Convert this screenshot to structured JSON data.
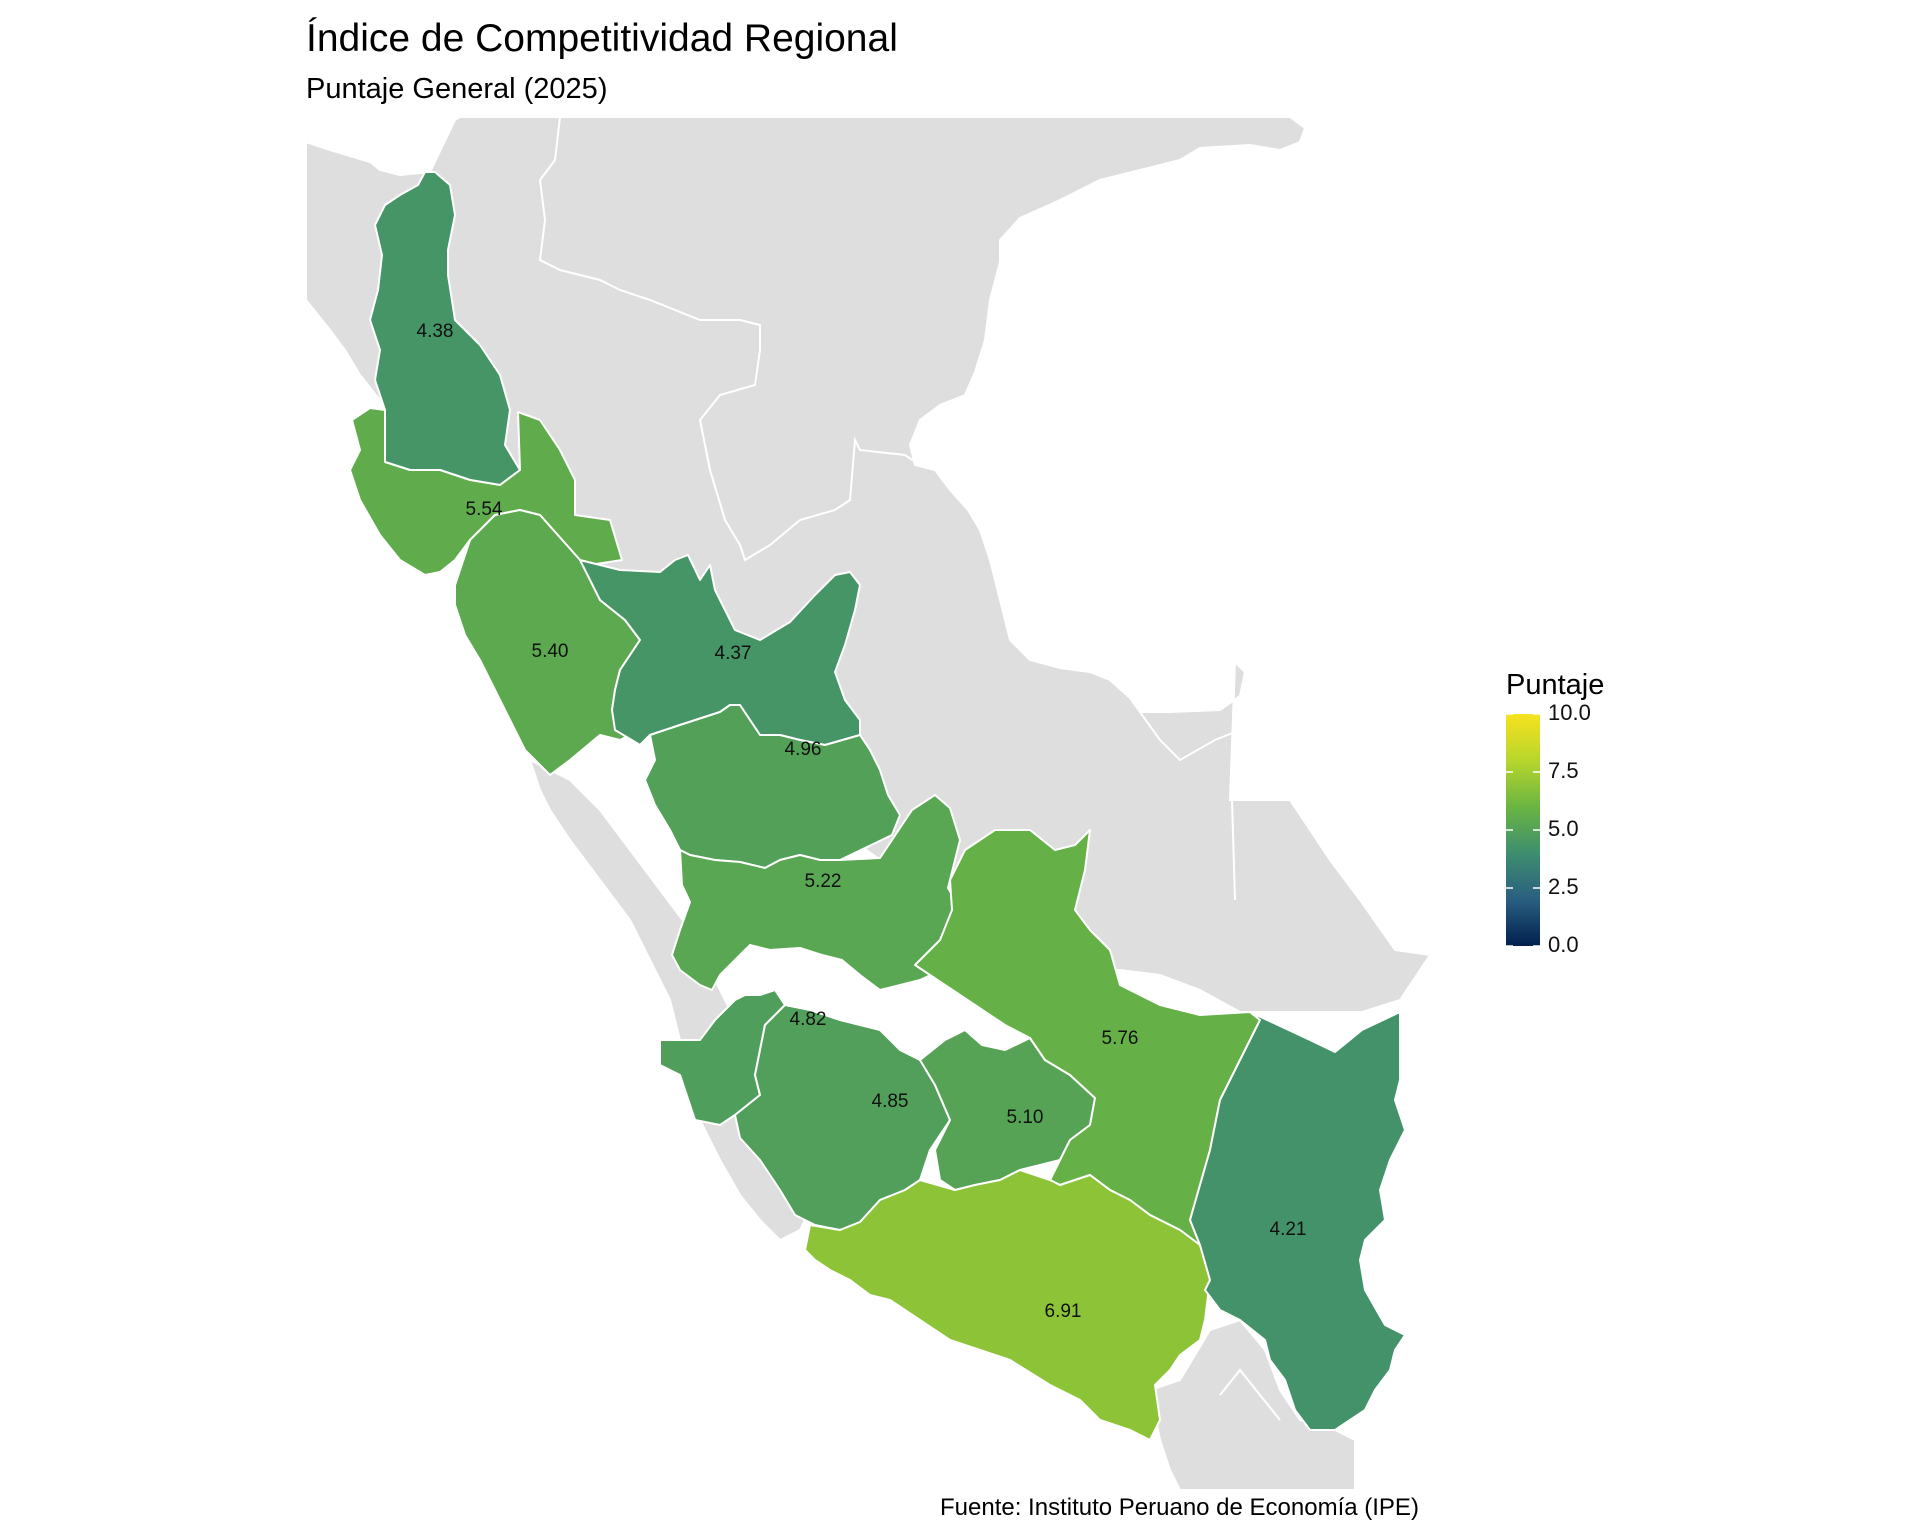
{
  "title": "Índice de Competitividad Regional",
  "subtitle": "Puntaje General (2025)",
  "caption": "Fuente: Instituto Peruano de Economía (IPE)",
  "legend": {
    "title": "Puntaje",
    "min": 0,
    "max": 10,
    "ticks": [
      {
        "value": 0,
        "label": "0.0"
      },
      {
        "value": 2.5,
        "label": "2.5"
      },
      {
        "value": 5,
        "label": "5.0"
      },
      {
        "value": 7.5,
        "label": "7.5"
      },
      {
        "value": 10,
        "label": "10.0"
      }
    ],
    "palette": [
      "#00204d",
      "#2a5f80",
      "#3e8e6f",
      "#6ab541",
      "#b8d62c",
      "#f7e21e"
    ]
  },
  "regions": [
    {
      "id": "cajamarca",
      "value": 4.38,
      "label": "4.38"
    },
    {
      "id": "lambayeque-la-libertad",
      "value": 5.54,
      "label": "5.54"
    },
    {
      "id": "ancash",
      "value": 5.4,
      "label": "5.40"
    },
    {
      "id": "huanuco",
      "value": 4.37,
      "label": "4.37"
    },
    {
      "id": "pasco-junin-north",
      "value": 4.96,
      "label": "4.96"
    },
    {
      "id": "junin",
      "value": 5.22,
      "label": "5.22"
    },
    {
      "id": "huancavelica",
      "value": 4.82,
      "label": "4.82"
    },
    {
      "id": "ayacucho",
      "value": 4.85,
      "label": "4.85"
    },
    {
      "id": "apurimac",
      "value": 5.1,
      "label": "5.10"
    },
    {
      "id": "cusco",
      "value": 5.76,
      "label": "5.76"
    },
    {
      "id": "arequipa",
      "value": 6.91,
      "label": "6.91"
    },
    {
      "id": "puno",
      "value": 4.21,
      "label": "4.21"
    }
  ],
  "base_fill": "#dedede"
}
